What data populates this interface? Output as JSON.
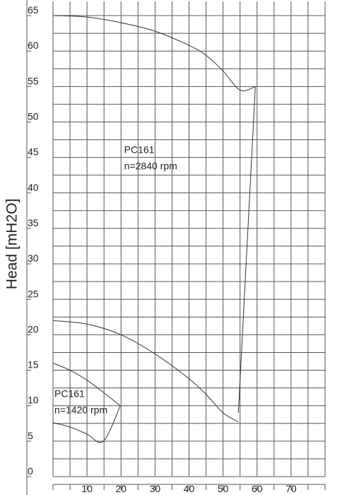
{
  "chart_data": {
    "type": "line",
    "ylabel": "Head [mH2O]",
    "xlabel": "",
    "xlim": [
      0,
      80
    ],
    "ylim": [
      0,
      67
    ],
    "y_ticks": [
      0,
      5,
      10,
      15,
      20,
      25,
      30,
      35,
      40,
      45,
      50,
      55,
      60,
      65
    ],
    "x_ticks": [
      10,
      20,
      30,
      40,
      50,
      60,
      70
    ],
    "grid": true,
    "x_grid_step": 5,
    "y_grid_step": 2.5,
    "series": [
      {
        "x": [
          0,
          10,
          20,
          30,
          40,
          45,
          50,
          55,
          59.5,
          54.5
        ],
        "y": [
          65,
          64.8,
          64,
          62.8,
          60.8,
          59.4,
          57.2,
          54.5,
          55,
          9
        ]
      },
      {
        "x": [
          0,
          10,
          20,
          30,
          40,
          45,
          50,
          54.5
        ],
        "y": [
          22,
          21.5,
          20,
          17.3,
          13.8,
          11.6,
          9,
          7.7
        ]
      },
      {
        "x": [
          0,
          5,
          10,
          15,
          19.8,
          14.8,
          10,
          5,
          0
        ],
        "y": [
          16,
          15,
          13.6,
          11.8,
          10,
          5,
          6,
          7,
          7.6
        ]
      }
    ],
    "annotations": [
      {
        "text": "PC161",
        "x": 20.5,
        "y": 45.6
      },
      {
        "text": "n=2840 rpm",
        "x": 20.5,
        "y": 43.3
      },
      {
        "text": "PC161",
        "x": 0,
        "y": 11.2
      },
      {
        "text": "n=1420 rpm",
        "x": 0,
        "y": 8.9
      }
    ]
  }
}
